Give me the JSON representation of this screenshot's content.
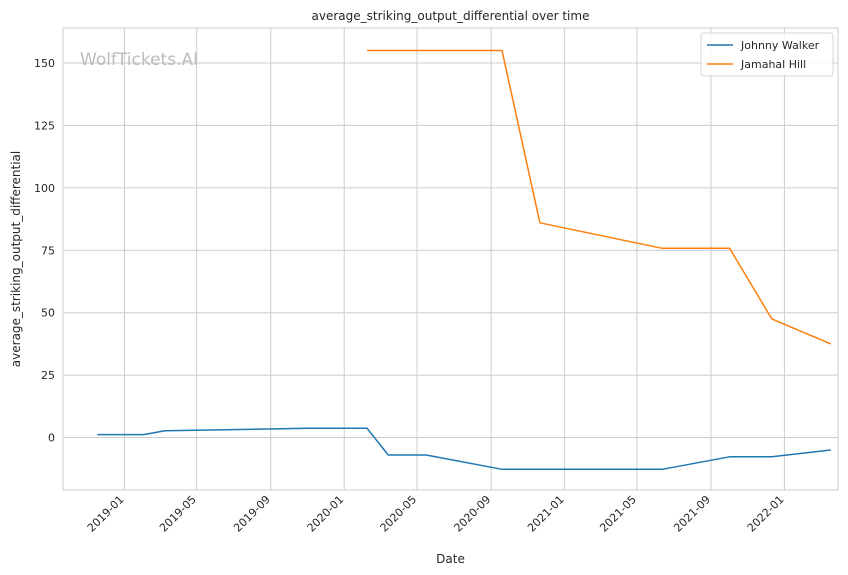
{
  "watermark": "WolfTickets.AI",
  "chart_data": {
    "type": "line",
    "title": "average_striking_output_differential over time",
    "xlabel": "Date",
    "ylabel": "average_striking_output_differential",
    "x_axis_type": "date",
    "xlim": [
      "2018-09-21",
      "2022-03-31"
    ],
    "ylim": [
      -21,
      164
    ],
    "x_ticks": [
      "2019-01",
      "2019-05",
      "2019-09",
      "2020-01",
      "2020-05",
      "2020-09",
      "2021-01",
      "2021-05",
      "2021-09",
      "2022-01"
    ],
    "y_ticks": [
      0,
      25,
      50,
      75,
      100,
      125,
      150
    ],
    "grid": true,
    "legend_position": "top-right",
    "series": [
      {
        "name": "Johnny Walker",
        "color": "#1f77b4",
        "points": [
          {
            "x": "2018-11-17",
            "y": 1.2
          },
          {
            "x": "2019-02-02",
            "y": 1.2
          },
          {
            "x": "2019-03-09",
            "y": 2.7
          },
          {
            "x": "2019-11-02",
            "y": 3.7
          },
          {
            "x": "2020-02-08",
            "y": 3.7
          },
          {
            "x": "2020-03-14",
            "y": -7.0
          },
          {
            "x": "2020-05-16",
            "y": -7.0
          },
          {
            "x": "2020-09-19",
            "y": -12.7
          },
          {
            "x": "2021-06-12",
            "y": -12.7
          },
          {
            "x": "2021-10-02",
            "y": -7.7
          },
          {
            "x": "2021-12-11",
            "y": -7.7
          },
          {
            "x": "2022-03-19",
            "y": -5.0
          }
        ]
      },
      {
        "name": "Jamahal Hill",
        "color": "#ff7f0e",
        "points": [
          {
            "x": "2020-02-08",
            "y": 155.0
          },
          {
            "x": "2020-09-19",
            "y": 155.0
          },
          {
            "x": "2020-11-21",
            "y": 86.0
          },
          {
            "x": "2021-06-12",
            "y": 75.8
          },
          {
            "x": "2021-10-02",
            "y": 75.8
          },
          {
            "x": "2021-12-11",
            "y": 47.5
          },
          {
            "x": "2022-03-19",
            "y": 37.5
          }
        ]
      }
    ]
  }
}
